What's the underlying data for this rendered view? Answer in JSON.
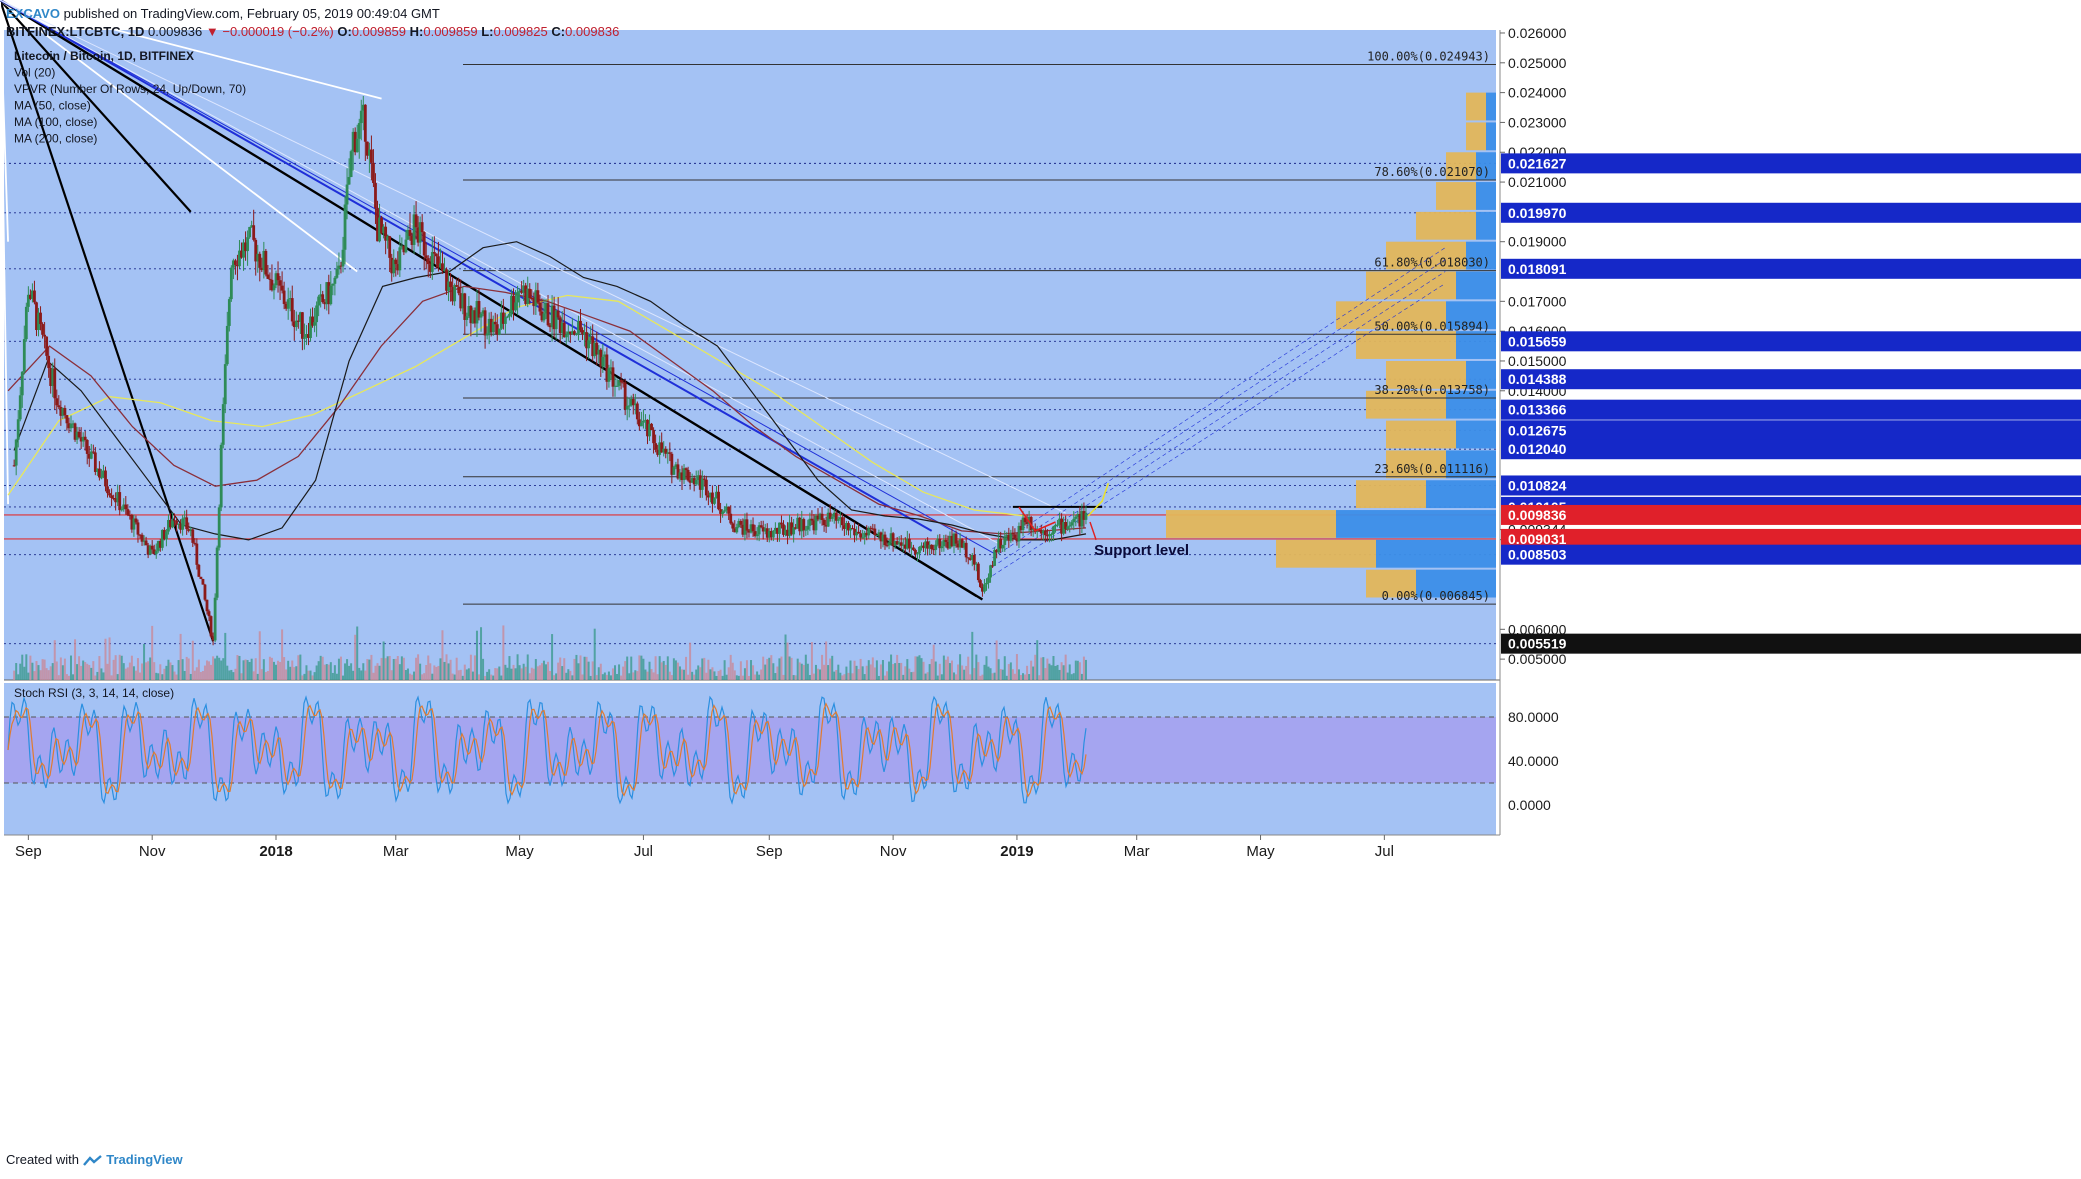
{
  "header": {
    "author": "EXCAVO",
    "published_text": "published on TradingView.com, February 05, 2019 00:49:04 GMT",
    "symbol": "BITFINEX:LTCBTC, 1D",
    "last": "0.009836",
    "change": "▼ −0.000019 (−0.2%)",
    "o_label": "O:",
    "o": "0.009859",
    "h_label": "H:",
    "h": "0.009859",
    "l_label": "L:",
    "l": "0.009825",
    "c_label": "C:",
    "c": "0.009836"
  },
  "legend": [
    "Litecoin / Bitcoin, 1D, BITFINEX",
    "Vol (20)",
    "VPVR (Number Of Rows, 24, Up/Down, 70)",
    "MA (50, close)",
    "MA (100, close)",
    "MA (200, close)"
  ],
  "oscillator_label": "Stoch RSI (3, 3, 14, 14, close)",
  "annotation": "Support level",
  "footer": {
    "created_with": "Created with",
    "brand": "TradingView"
  },
  "colors": {
    "plot_bg": "#a4c2f4",
    "osc_band": "#a5a5f0",
    "up_candle": "#2e8b57",
    "down_candle": "#8b1a1a",
    "fib_line": "#333333",
    "price_line": "#e03030",
    "channel": "#1f2fd8",
    "trend_black": "#000000",
    "trend_white": "#ffffff",
    "ma50": "#1a1a1a",
    "ma100": "#8b2f3a",
    "ma200": "#e8e85a",
    "vp_up": "#e3b65a",
    "vp_down": "#3c8ee8",
    "stoch_k": "#2a8fe0",
    "stoch_d": "#e07b30"
  },
  "chart_data": {
    "type": "candlestick",
    "title": "Litecoin / Bitcoin, 1D, BITFINEX",
    "x_ticks": [
      "Sep",
      "Nov",
      "2018",
      "Mar",
      "May",
      "Jul",
      "Sep",
      "Nov",
      "2019",
      "Mar",
      "May",
      "Jul"
    ],
    "y_ticks": [
      "0.026000",
      "0.025000",
      "0.024000",
      "0.023000",
      "0.022000",
      "0.021000",
      "0.019000",
      "0.017000",
      "0.016000",
      "0.015000",
      "0.014000",
      "0.009344",
      "0.009007",
      "0.006000",
      "0.005000"
    ],
    "ylim": [
      0.0043,
      0.0261
    ],
    "price_series": {
      "x": [
        "2017-08-25",
        "2017-09-01",
        "2017-09-15",
        "2017-10-01",
        "2017-10-20",
        "2017-11-01",
        "2017-11-12",
        "2017-11-20",
        "2017-12-01",
        "2017-12-05",
        "2017-12-10",
        "2017-12-20",
        "2018-01-01",
        "2018-01-15",
        "2018-02-01",
        "2018-02-08",
        "2018-02-14",
        "2018-02-20",
        "2018-03-01",
        "2018-03-10",
        "2018-03-20",
        "2018-04-01",
        "2018-04-20",
        "2018-05-01",
        "2018-05-15",
        "2018-06-01",
        "2018-06-15",
        "2018-07-01",
        "2018-07-15",
        "2018-08-01",
        "2018-08-15",
        "2018-09-01",
        "2018-09-15",
        "2018-10-01",
        "2018-10-15",
        "2018-11-01",
        "2018-11-15",
        "2018-12-01",
        "2018-12-10",
        "2018-12-15",
        "2018-12-22",
        "2019-01-01",
        "2019-01-05",
        "2019-01-12",
        "2019-01-20",
        "2019-02-01",
        "2019-02-04"
      ],
      "close": [
        0.0115,
        0.0175,
        0.0138,
        0.0118,
        0.0098,
        0.0085,
        0.0098,
        0.0093,
        0.0056,
        0.012,
        0.0185,
        0.019,
        0.0175,
        0.016,
        0.0178,
        0.0225,
        0.023,
        0.0195,
        0.018,
        0.0195,
        0.0183,
        0.017,
        0.016,
        0.0175,
        0.0165,
        0.016,
        0.0145,
        0.0128,
        0.0115,
        0.0108,
        0.0095,
        0.0092,
        0.0095,
        0.0097,
        0.0092,
        0.009,
        0.0087,
        0.009,
        0.0085,
        0.0072,
        0.0088,
        0.0092,
        0.0098,
        0.0093,
        0.0094,
        0.0097,
        0.0098
      ]
    },
    "ma50": [
      0.012,
      0.015,
      0.014,
      0.0125,
      0.011,
      0.0095,
      0.0092,
      0.009,
      0.0094,
      0.011,
      0.015,
      0.0175,
      0.0178,
      0.018,
      0.0188,
      0.019,
      0.0185,
      0.0178,
      0.0175,
      0.017,
      0.0162,
      0.0155,
      0.014,
      0.0125,
      0.011,
      0.01,
      0.0098,
      0.0097,
      0.0095,
      0.0092,
      0.009,
      0.009,
      0.0092
    ],
    "ma100": [
      0.014,
      0.0155,
      0.0145,
      0.0128,
      0.0115,
      0.0108,
      0.011,
      0.0118,
      0.0135,
      0.0155,
      0.017,
      0.0175,
      0.0173,
      0.017,
      0.0165,
      0.016,
      0.015,
      0.014,
      0.0128,
      0.0118,
      0.011,
      0.0102,
      0.0098,
      0.0093,
      0.0092,
      0.0093,
      0.0094
    ],
    "ma200": [
      0.0105,
      0.013,
      0.0138,
      0.0136,
      0.013,
      0.0128,
      0.0132,
      0.014,
      0.0148,
      0.0158,
      0.0168,
      0.0172,
      0.017,
      0.016,
      0.015,
      0.014,
      0.0128,
      0.0116,
      0.0106,
      0.01,
      0.0098
    ],
    "fib_levels": [
      {
        "label": "100.00%(0.024943)",
        "value": 0.024943
      },
      {
        "label": "78.60%(0.021070)",
        "value": 0.02107
      },
      {
        "label": "61.80%(0.018030)",
        "value": 0.01803
      },
      {
        "label": "50.00%(0.015894)",
        "value": 0.015894
      },
      {
        "label": "38.20%(0.013758)",
        "value": 0.013758
      },
      {
        "label": "23.60%(0.011116)",
        "value": 0.011116
      },
      {
        "label": "0.00%(0.006845)",
        "value": 0.006845
      }
    ],
    "price_tags": [
      {
        "label": "0.021627",
        "value": 0.021627,
        "style": "blue"
      },
      {
        "label": "0.019970",
        "value": 0.01997,
        "style": "blue"
      },
      {
        "label": "0.018091",
        "value": 0.018091,
        "style": "blue"
      },
      {
        "label": "0.015659",
        "value": 0.015659,
        "style": "blue"
      },
      {
        "label": "0.014388",
        "value": 0.014388,
        "style": "blue"
      },
      {
        "label": "0.013366",
        "value": 0.013366,
        "style": "blue"
      },
      {
        "label": "0.012675",
        "value": 0.012675,
        "style": "blue"
      },
      {
        "label": "0.012040",
        "value": 0.01204,
        "style": "blue"
      },
      {
        "label": "0.010824",
        "value": 0.010824,
        "style": "blue"
      },
      {
        "label": "0.010105",
        "value": 0.010105,
        "style": "blue"
      },
      {
        "label": "0.009836",
        "value": 0.009836,
        "style": "red"
      },
      {
        "label": "0.009031",
        "value": 0.009031,
        "style": "red"
      },
      {
        "label": "0.008503",
        "value": 0.008503,
        "style": "blue"
      },
      {
        "label": "0.005519",
        "value": 0.005519,
        "style": "black"
      }
    ],
    "volume_profile": [
      {
        "price": 0.0235,
        "up": 0.2,
        "down": 0.1
      },
      {
        "price": 0.0225,
        "up": 0.2,
        "down": 0.1
      },
      {
        "price": 0.0215,
        "up": 0.3,
        "down": 0.2
      },
      {
        "price": 0.0205,
        "up": 0.4,
        "down": 0.2
      },
      {
        "price": 0.0195,
        "up": 0.6,
        "down": 0.2
      },
      {
        "price": 0.0185,
        "up": 0.8,
        "down": 0.3
      },
      {
        "price": 0.0175,
        "up": 0.9,
        "down": 0.4
      },
      {
        "price": 0.0165,
        "up": 1.1,
        "down": 0.5
      },
      {
        "price": 0.0155,
        "up": 1.0,
        "down": 0.4
      },
      {
        "price": 0.0145,
        "up": 0.8,
        "down": 0.3
      },
      {
        "price": 0.0135,
        "up": 0.8,
        "down": 0.5
      },
      {
        "price": 0.0125,
        "up": 0.7,
        "down": 0.4
      },
      {
        "price": 0.0115,
        "up": 0.6,
        "down": 0.5
      },
      {
        "price": 0.0105,
        "up": 0.7,
        "down": 0.7
      },
      {
        "price": 0.0095,
        "up": 1.7,
        "down": 1.6
      },
      {
        "price": 0.0085,
        "up": 1.0,
        "down": 1.2
      },
      {
        "price": 0.0075,
        "up": 0.5,
        "down": 0.8
      }
    ],
    "oscillator": {
      "name": "Stoch RSI (3, 3, 14, 14, close)",
      "y_ticks": [
        "80.0000",
        "40.0000",
        "0.0000"
      ],
      "ylim": [
        0,
        100
      ],
      "bands": [
        20,
        80
      ]
    }
  }
}
